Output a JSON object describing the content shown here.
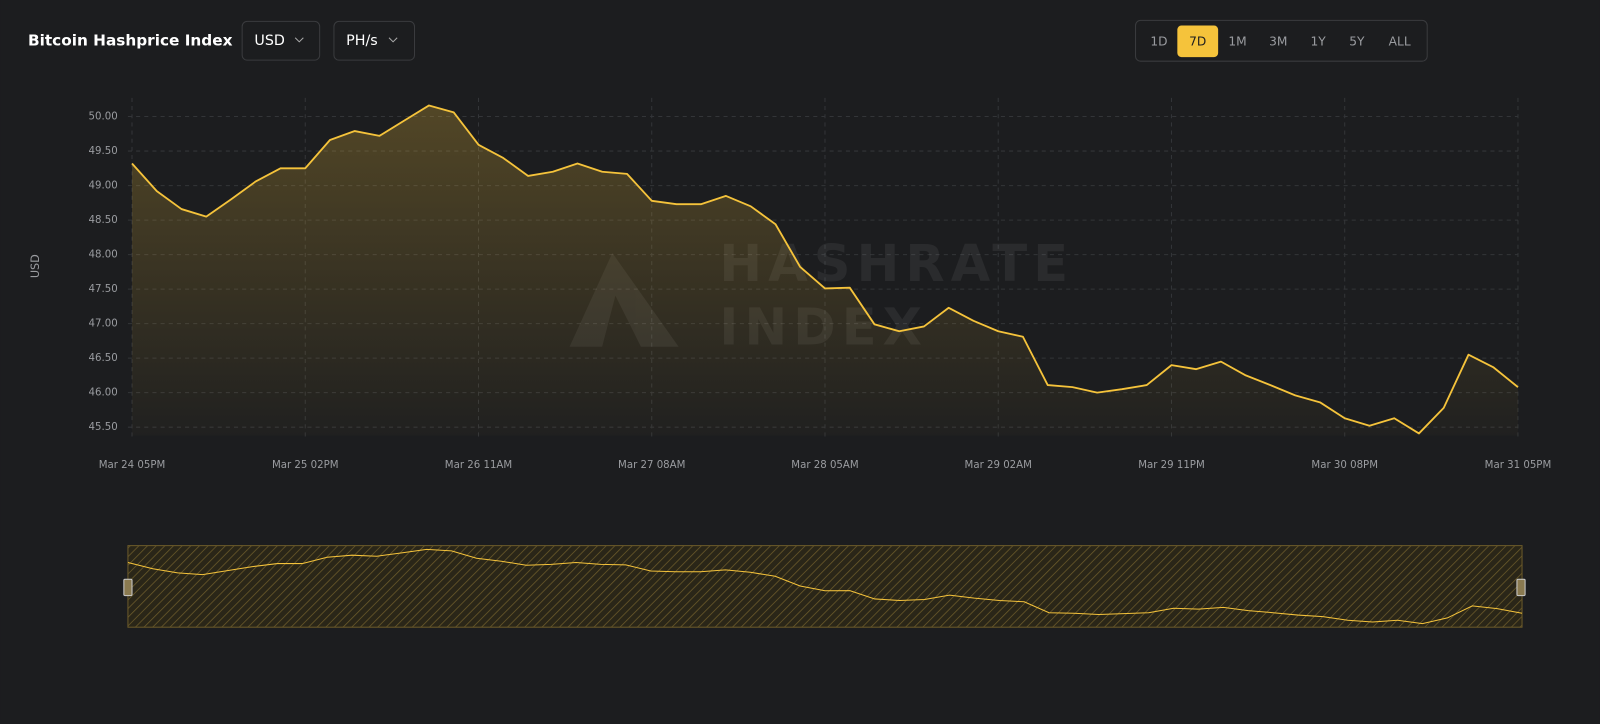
{
  "header": {
    "title": "Bitcoin Hashprice Index",
    "selectors": [
      "USD",
      "PH/s"
    ],
    "ranges": [
      "1D",
      "7D",
      "1M",
      "3M",
      "1Y",
      "5Y",
      "ALL"
    ],
    "active_range_index": 1
  },
  "chart_data": {
    "type": "line",
    "ylabel": "USD",
    "watermark": [
      "HASHRATE",
      "INDEX"
    ],
    "color": "#f5c33b",
    "grid": true,
    "categories": [
      "Mar 24 05PM",
      null,
      null,
      null,
      null,
      null,
      null,
      "Mar 25 02PM",
      null,
      null,
      null,
      null,
      null,
      null,
      "Mar 26 11AM",
      null,
      null,
      null,
      null,
      null,
      null,
      "Mar 27 08AM",
      null,
      null,
      null,
      null,
      null,
      null,
      "Mar 28 05AM",
      null,
      null,
      null,
      null,
      null,
      null,
      "Mar 29 02AM",
      null,
      null,
      null,
      null,
      null,
      null,
      "Mar 29 11PM",
      null,
      null,
      null,
      null,
      null,
      null,
      "Mar 30 08PM",
      null,
      null,
      null,
      null,
      null,
      null,
      "Mar 31 05PM"
    ],
    "values": [
      49.32,
      48.92,
      48.66,
      48.55,
      48.8,
      49.06,
      49.25,
      49.25,
      49.66,
      49.79,
      49.72,
      49.94,
      50.16,
      50.06,
      49.59,
      49.4,
      49.14,
      49.2,
      49.32,
      49.2,
      49.17,
      48.78,
      48.73,
      48.73,
      48.85,
      48.7,
      48.44,
      47.82,
      47.51,
      47.52,
      46.99,
      46.89,
      46.96,
      47.23,
      47.04,
      46.89,
      46.81,
      46.11,
      46.08,
      46.0,
      46.05,
      46.11,
      46.4,
      46.34,
      46.45,
      46.25,
      46.11,
      45.96,
      45.86,
      45.63,
      45.52,
      45.63,
      45.41,
      45.78,
      46.55,
      46.37,
      46.08
    ],
    "ylim": [
      45.38,
      50.27
    ],
    "yticks": [
      {
        "value": 45.5,
        "label": "45.50"
      },
      {
        "value": 46,
        "label": "46.00"
      },
      {
        "value": 46.5,
        "label": "46.50"
      },
      {
        "value": 47,
        "label": "47.00"
      },
      {
        "value": 47.5,
        "label": "47.50"
      },
      {
        "value": 48,
        "label": "48.00"
      },
      {
        "value": 48.5,
        "label": "48.50"
      },
      {
        "value": 49,
        "label": "49.00"
      },
      {
        "value": 49.5,
        "label": "49.50"
      },
      {
        "value": 50,
        "label": "50.00"
      }
    ]
  }
}
